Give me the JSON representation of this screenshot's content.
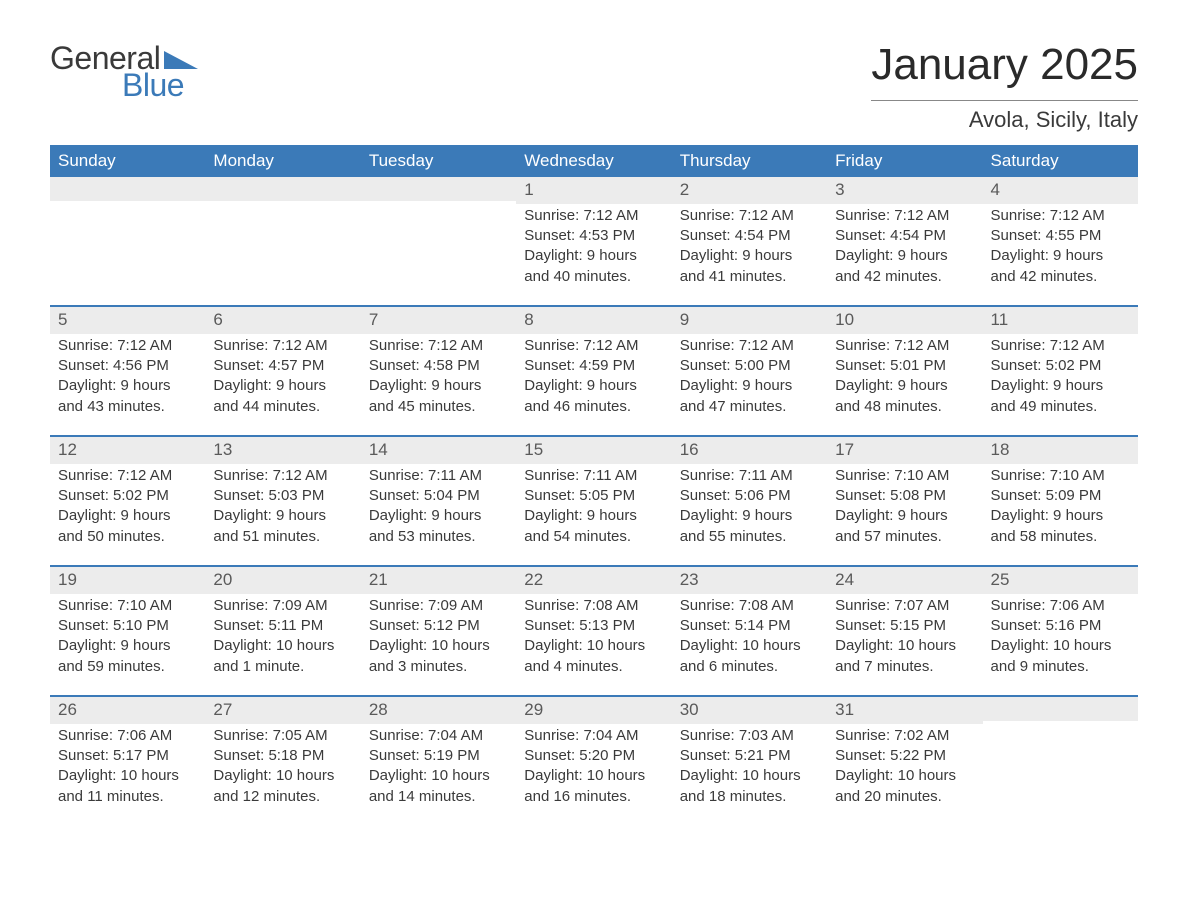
{
  "brand": {
    "word1": "General",
    "word2": "Blue",
    "triangle_color": "#3b7ab8"
  },
  "title": "January 2025",
  "location": "Avola, Sicily, Italy",
  "colors": {
    "header_bg": "#3b7ab8",
    "header_text": "#ffffff",
    "daynum_bg": "#ececec",
    "body_text": "#3a3a3a",
    "rule": "#3b7ab8",
    "page_bg": "#ffffff"
  },
  "days_of_week": [
    "Sunday",
    "Monday",
    "Tuesday",
    "Wednesday",
    "Thursday",
    "Friday",
    "Saturday"
  ],
  "weeks": [
    [
      {
        "day": "",
        "sunrise": "",
        "sunset": "",
        "daylight": ""
      },
      {
        "day": "",
        "sunrise": "",
        "sunset": "",
        "daylight": ""
      },
      {
        "day": "",
        "sunrise": "",
        "sunset": "",
        "daylight": ""
      },
      {
        "day": "1",
        "sunrise": "Sunrise: 7:12 AM",
        "sunset": "Sunset: 4:53 PM",
        "daylight": "Daylight: 9 hours and 40 minutes."
      },
      {
        "day": "2",
        "sunrise": "Sunrise: 7:12 AM",
        "sunset": "Sunset: 4:54 PM",
        "daylight": "Daylight: 9 hours and 41 minutes."
      },
      {
        "day": "3",
        "sunrise": "Sunrise: 7:12 AM",
        "sunset": "Sunset: 4:54 PM",
        "daylight": "Daylight: 9 hours and 42 minutes."
      },
      {
        "day": "4",
        "sunrise": "Sunrise: 7:12 AM",
        "sunset": "Sunset: 4:55 PM",
        "daylight": "Daylight: 9 hours and 42 minutes."
      }
    ],
    [
      {
        "day": "5",
        "sunrise": "Sunrise: 7:12 AM",
        "sunset": "Sunset: 4:56 PM",
        "daylight": "Daylight: 9 hours and 43 minutes."
      },
      {
        "day": "6",
        "sunrise": "Sunrise: 7:12 AM",
        "sunset": "Sunset: 4:57 PM",
        "daylight": "Daylight: 9 hours and 44 minutes."
      },
      {
        "day": "7",
        "sunrise": "Sunrise: 7:12 AM",
        "sunset": "Sunset: 4:58 PM",
        "daylight": "Daylight: 9 hours and 45 minutes."
      },
      {
        "day": "8",
        "sunrise": "Sunrise: 7:12 AM",
        "sunset": "Sunset: 4:59 PM",
        "daylight": "Daylight: 9 hours and 46 minutes."
      },
      {
        "day": "9",
        "sunrise": "Sunrise: 7:12 AM",
        "sunset": "Sunset: 5:00 PM",
        "daylight": "Daylight: 9 hours and 47 minutes."
      },
      {
        "day": "10",
        "sunrise": "Sunrise: 7:12 AM",
        "sunset": "Sunset: 5:01 PM",
        "daylight": "Daylight: 9 hours and 48 minutes."
      },
      {
        "day": "11",
        "sunrise": "Sunrise: 7:12 AM",
        "sunset": "Sunset: 5:02 PM",
        "daylight": "Daylight: 9 hours and 49 minutes."
      }
    ],
    [
      {
        "day": "12",
        "sunrise": "Sunrise: 7:12 AM",
        "sunset": "Sunset: 5:02 PM",
        "daylight": "Daylight: 9 hours and 50 minutes."
      },
      {
        "day": "13",
        "sunrise": "Sunrise: 7:12 AM",
        "sunset": "Sunset: 5:03 PM",
        "daylight": "Daylight: 9 hours and 51 minutes."
      },
      {
        "day": "14",
        "sunrise": "Sunrise: 7:11 AM",
        "sunset": "Sunset: 5:04 PM",
        "daylight": "Daylight: 9 hours and 53 minutes."
      },
      {
        "day": "15",
        "sunrise": "Sunrise: 7:11 AM",
        "sunset": "Sunset: 5:05 PM",
        "daylight": "Daylight: 9 hours and 54 minutes."
      },
      {
        "day": "16",
        "sunrise": "Sunrise: 7:11 AM",
        "sunset": "Sunset: 5:06 PM",
        "daylight": "Daylight: 9 hours and 55 minutes."
      },
      {
        "day": "17",
        "sunrise": "Sunrise: 7:10 AM",
        "sunset": "Sunset: 5:08 PM",
        "daylight": "Daylight: 9 hours and 57 minutes."
      },
      {
        "day": "18",
        "sunrise": "Sunrise: 7:10 AM",
        "sunset": "Sunset: 5:09 PM",
        "daylight": "Daylight: 9 hours and 58 minutes."
      }
    ],
    [
      {
        "day": "19",
        "sunrise": "Sunrise: 7:10 AM",
        "sunset": "Sunset: 5:10 PM",
        "daylight": "Daylight: 9 hours and 59 minutes."
      },
      {
        "day": "20",
        "sunrise": "Sunrise: 7:09 AM",
        "sunset": "Sunset: 5:11 PM",
        "daylight": "Daylight: 10 hours and 1 minute."
      },
      {
        "day": "21",
        "sunrise": "Sunrise: 7:09 AM",
        "sunset": "Sunset: 5:12 PM",
        "daylight": "Daylight: 10 hours and 3 minutes."
      },
      {
        "day": "22",
        "sunrise": "Sunrise: 7:08 AM",
        "sunset": "Sunset: 5:13 PM",
        "daylight": "Daylight: 10 hours and 4 minutes."
      },
      {
        "day": "23",
        "sunrise": "Sunrise: 7:08 AM",
        "sunset": "Sunset: 5:14 PM",
        "daylight": "Daylight: 10 hours and 6 minutes."
      },
      {
        "day": "24",
        "sunrise": "Sunrise: 7:07 AM",
        "sunset": "Sunset: 5:15 PM",
        "daylight": "Daylight: 10 hours and 7 minutes."
      },
      {
        "day": "25",
        "sunrise": "Sunrise: 7:06 AM",
        "sunset": "Sunset: 5:16 PM",
        "daylight": "Daylight: 10 hours and 9 minutes."
      }
    ],
    [
      {
        "day": "26",
        "sunrise": "Sunrise: 7:06 AM",
        "sunset": "Sunset: 5:17 PM",
        "daylight": "Daylight: 10 hours and 11 minutes."
      },
      {
        "day": "27",
        "sunrise": "Sunrise: 7:05 AM",
        "sunset": "Sunset: 5:18 PM",
        "daylight": "Daylight: 10 hours and 12 minutes."
      },
      {
        "day": "28",
        "sunrise": "Sunrise: 7:04 AM",
        "sunset": "Sunset: 5:19 PM",
        "daylight": "Daylight: 10 hours and 14 minutes."
      },
      {
        "day": "29",
        "sunrise": "Sunrise: 7:04 AM",
        "sunset": "Sunset: 5:20 PM",
        "daylight": "Daylight: 10 hours and 16 minutes."
      },
      {
        "day": "30",
        "sunrise": "Sunrise: 7:03 AM",
        "sunset": "Sunset: 5:21 PM",
        "daylight": "Daylight: 10 hours and 18 minutes."
      },
      {
        "day": "31",
        "sunrise": "Sunrise: 7:02 AM",
        "sunset": "Sunset: 5:22 PM",
        "daylight": "Daylight: 10 hours and 20 minutes."
      },
      {
        "day": "",
        "sunrise": "",
        "sunset": "",
        "daylight": ""
      }
    ]
  ]
}
